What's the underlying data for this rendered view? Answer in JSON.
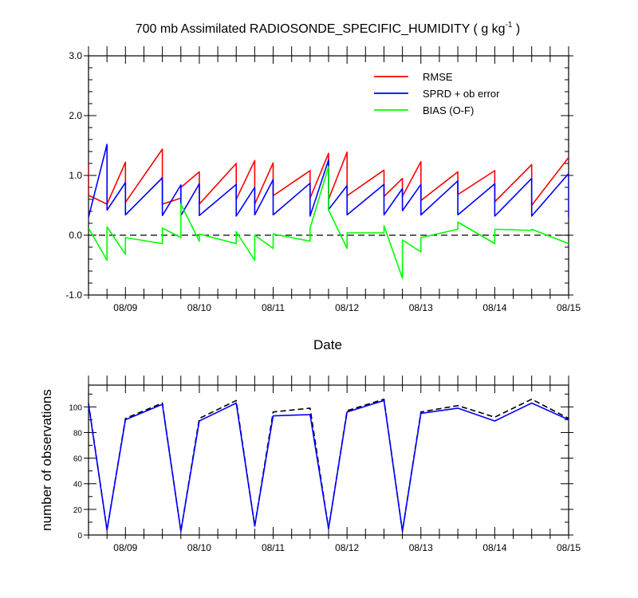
{
  "chart_data": [
    {
      "type": "line",
      "title_main": "700 mb Assimilated RADIOSONDE_SPECIFIC_HUMIDITY ( g kg",
      "title_sup": "-1",
      "title_end": " )",
      "xlabel": "Date",
      "ylabel": "",
      "xlim": [
        0,
        6.5
      ],
      "ylim": [
        -1.0,
        3.0
      ],
      "yticks": [
        -1.0,
        0.0,
        1.0,
        2.0,
        3.0
      ],
      "ytick_labels": [
        "-1.0",
        "0.0",
        "1.0",
        "2.0",
        "3.0"
      ],
      "xticks": [
        0.5,
        1.5,
        2.5,
        3.5,
        4.5,
        5.5,
        6.5
      ],
      "xtick_labels": [
        "08/09",
        "08/10",
        "08/11",
        "08/12",
        "08/13",
        "08/14",
        "08/15"
      ],
      "legend_position": "top-right",
      "reference_line": {
        "y": 0.0,
        "style": "dashed"
      },
      "series": [
        {
          "name": "RMSE",
          "color": "#ff0000",
          "x": [
            0,
            0,
            0.25,
            0.25,
            0.5,
            0.5,
            1.0,
            1.0,
            1.25,
            1.25,
            1.5,
            1.5,
            2.0,
            2.0,
            2.25,
            2.25,
            2.5,
            2.5,
            3.0,
            3.0,
            3.25,
            3.25,
            3.5,
            3.5,
            4.0,
            4.0,
            4.25,
            4.25,
            4.5,
            4.5,
            5.0,
            5.0,
            5.5,
            5.5,
            6.0,
            6.0,
            6.5
          ],
          "y": [
            1.2,
            0.67,
            0.52,
            0.52,
            1.22,
            0.55,
            1.44,
            0.52,
            0.62,
            0.8,
            1.06,
            0.52,
            1.2,
            0.6,
            1.25,
            0.52,
            1.21,
            0.66,
            1.08,
            0.62,
            1.37,
            0.6,
            1.39,
            0.66,
            1.09,
            0.65,
            0.95,
            0.65,
            1.23,
            0.58,
            1.06,
            0.68,
            1.08,
            0.56,
            1.18,
            0.5,
            1.3
          ]
        },
        {
          "name": "SPRD + ob error",
          "color": "#0000ff",
          "x": [
            0,
            0.25,
            0.25,
            0.5,
            0.5,
            1.0,
            1.0,
            1.25,
            1.25,
            1.5,
            1.5,
            2.0,
            2.0,
            2.25,
            2.25,
            2.5,
            2.5,
            3.0,
            3.0,
            3.25,
            3.25,
            3.5,
            3.5,
            4.0,
            4.0,
            4.25,
            4.25,
            4.5,
            4.5,
            5.0,
            5.0,
            5.5,
            5.5,
            6.0,
            6.0,
            6.5,
            6.5
          ],
          "y": [
            0.3,
            1.52,
            0.42,
            0.88,
            0.34,
            0.96,
            0.33,
            0.84,
            0.33,
            0.86,
            0.33,
            0.85,
            0.32,
            0.8,
            0.34,
            0.93,
            0.34,
            0.87,
            0.32,
            1.26,
            0.43,
            0.83,
            0.34,
            0.85,
            0.34,
            0.78,
            0.41,
            0.85,
            0.34,
            0.91,
            0.34,
            0.86,
            0.32,
            0.95,
            0.32,
            1.03,
            0.3
          ]
        },
        {
          "name": "BIAS (O-F)",
          "color": "#00ff00",
          "x": [
            0,
            0.25,
            0.25,
            0.5,
            0.5,
            1.0,
            1.0,
            1.25,
            1.25,
            1.5,
            1.5,
            2.0,
            2.0,
            2.25,
            2.25,
            2.5,
            2.5,
            3.0,
            3.0,
            3.25,
            3.25,
            3.5,
            3.5,
            4.0,
            4.0,
            4.25,
            4.25,
            4.5,
            4.5,
            5.0,
            5.0,
            5.5,
            5.5,
            6.0,
            6.0,
            6.5
          ],
          "y": [
            0.12,
            -0.42,
            0.14,
            -0.32,
            -0.04,
            -0.14,
            0.12,
            -0.04,
            0.52,
            -0.1,
            0.02,
            -0.14,
            0.06,
            -0.42,
            0.0,
            -0.22,
            0.02,
            -0.1,
            0.12,
            1.15,
            0.42,
            -0.22,
            0.04,
            0.04,
            0.16,
            -0.72,
            -0.08,
            -0.28,
            -0.04,
            0.1,
            0.22,
            -0.14,
            0.1,
            0.08,
            0.1,
            -0.14
          ]
        }
      ]
    },
    {
      "type": "line",
      "title": "",
      "xlabel": "",
      "ylabel": "number of observations",
      "xlim": [
        0,
        6.5
      ],
      "ylim": [
        0,
        117
      ],
      "yticks": [
        0,
        20,
        40,
        60,
        80,
        100
      ],
      "ytick_labels": [
        "0",
        "20",
        "40",
        "60",
        "80",
        "100"
      ],
      "xticks": [
        0.5,
        1.5,
        2.5,
        3.5,
        4.5,
        5.5,
        6.5
      ],
      "xtick_labels": [
        "08/09",
        "08/10",
        "08/11",
        "08/12",
        "08/13",
        "08/14",
        "08/15"
      ],
      "series": [
        {
          "name": "",
          "color": "#000000",
          "style": "dashed",
          "x": [
            0,
            0.25,
            0.5,
            1.0,
            1.25,
            1.5,
            2.0,
            2.25,
            2.5,
            3.0,
            3.25,
            3.5,
            4.0,
            4.25,
            4.5,
            5.0,
            5.5,
            6.0,
            6.5
          ],
          "y": [
            103,
            4,
            91,
            103,
            3,
            91,
            105,
            7,
            96,
            99,
            5,
            97,
            106,
            3,
            96,
            101,
            92,
            106,
            91
          ]
        },
        {
          "name": "",
          "color": "#0000ff",
          "style": "solid",
          "x": [
            0,
            0.25,
            0.5,
            1.0,
            1.25,
            1.5,
            2.0,
            2.25,
            2.5,
            3.0,
            3.25,
            3.5,
            4.0,
            4.25,
            4.5,
            5.0,
            5.5,
            6.0,
            6.5
          ],
          "y": [
            102,
            4,
            90,
            102,
            3,
            89,
            103,
            7,
            93,
            94,
            5,
            96,
            105,
            3,
            95,
            99,
            89,
            103,
            90
          ]
        }
      ]
    }
  ]
}
